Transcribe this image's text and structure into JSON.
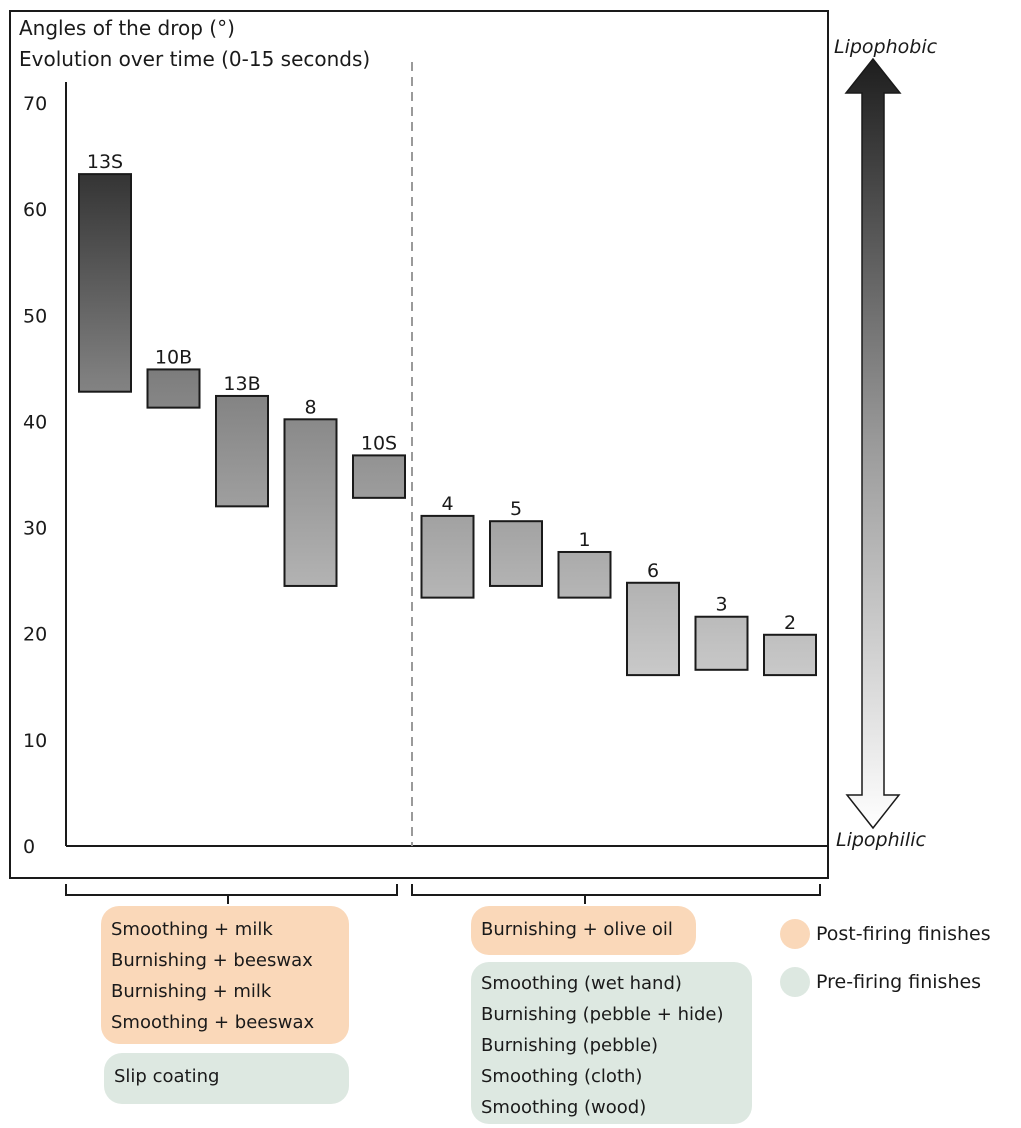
{
  "chart_data": {
    "type": "bar",
    "title": "Angles of the drop (°)",
    "subtitle": "Evolution over time (0-15 seconds)",
    "ylim": [
      0,
      70
    ],
    "yticks": [
      0,
      10,
      20,
      30,
      40,
      50,
      60,
      70
    ],
    "grid": false,
    "bars": [
      {
        "label": "13S",
        "low": 42.8,
        "high": 63.3
      },
      {
        "label": "10B",
        "low": 41.3,
        "high": 44.9
      },
      {
        "label": "13B",
        "low": 32.0,
        "high": 42.4
      },
      {
        "label": "8",
        "low": 24.5,
        "high": 40.2
      },
      {
        "label": "10S",
        "low": 32.8,
        "high": 36.8
      },
      {
        "label": "4",
        "low": 23.4,
        "high": 31.1
      },
      {
        "label": "5",
        "low": 24.5,
        "high": 30.6
      },
      {
        "label": "1",
        "low": 23.4,
        "high": 27.7
      },
      {
        "label": "6",
        "low": 16.1,
        "high": 24.8
      },
      {
        "label": "3",
        "low": 16.6,
        "high": 21.6
      },
      {
        "label": "2",
        "low": 16.1,
        "high": 19.9
      }
    ],
    "gradient_axis": {
      "top_label": "Lipophobic",
      "bottom_label": "Lipophilic"
    }
  },
  "groups": {
    "left": {
      "post_firing": [
        "Smoothing + milk",
        "Burnishing + beeswax",
        "Burnishing + milk",
        "Smoothing + beeswax"
      ],
      "pre_firing": [
        "Slip coating"
      ]
    },
    "right": {
      "post_firing": [
        "Burnishing + olive oil"
      ],
      "pre_firing": [
        "Smoothing (wet hand)",
        "Burnishing (pebble + hide)",
        "Burnishing (pebble)",
        "Smoothing (cloth)",
        "Smoothing (wood)"
      ]
    }
  },
  "legend": {
    "post_firing": {
      "label": "Post-firing finishes",
      "color": "#fad8b9"
    },
    "pre_firing": {
      "label": "Pre-firing finishes",
      "color": "#dde8e1"
    }
  }
}
